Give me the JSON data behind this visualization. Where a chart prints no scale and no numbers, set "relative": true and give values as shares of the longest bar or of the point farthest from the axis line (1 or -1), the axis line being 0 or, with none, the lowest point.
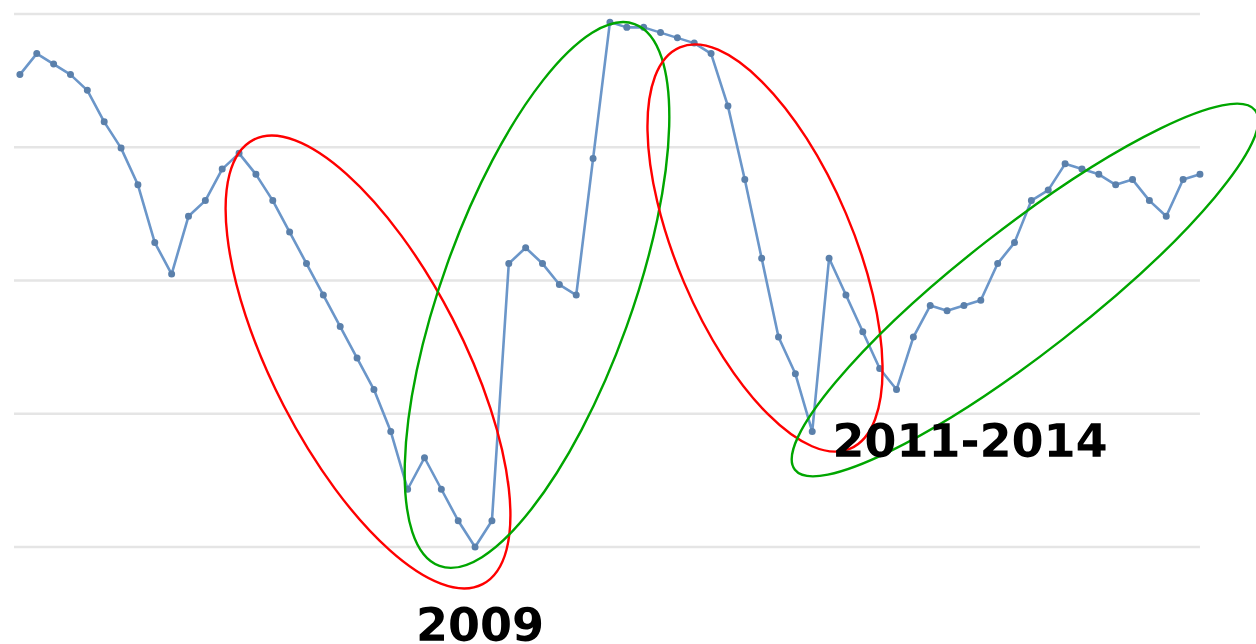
{
  "chart_data": {
    "type": "line",
    "relative": true,
    "color": "#6b96c9",
    "marker": "circle",
    "grid": "y",
    "categories": [
      null,
      null,
      null,
      null,
      null,
      null,
      null,
      null,
      null,
      null,
      null,
      null,
      null,
      null,
      null,
      null,
      null,
      null,
      null,
      null,
      null,
      null,
      null,
      null,
      null,
      null,
      null,
      null,
      null,
      null,
      null,
      null,
      null,
      null,
      null,
      null,
      null,
      null,
      null,
      null,
      null,
      null,
      null,
      null,
      null,
      null,
      null,
      null,
      null,
      null,
      null,
      null,
      null,
      null,
      null,
      null,
      null,
      null,
      null,
      null,
      null,
      null,
      null,
      null,
      null,
      null,
      null,
      null,
      null,
      null,
      null
    ],
    "values": [
      0.9,
      0.94,
      0.92,
      0.9,
      0.87,
      0.81,
      0.76,
      0.69,
      0.58,
      0.52,
      0.63,
      0.66,
      0.72,
      0.75,
      0.71,
      0.66,
      0.6,
      0.54,
      0.48,
      0.42,
      0.36,
      0.3,
      0.22,
      0.11,
      0.17,
      0.11,
      0.05,
      0,
      0.05,
      0.54,
      0.57,
      0.54,
      0.5,
      0.48,
      0.74,
      1,
      0.99,
      0.99,
      0.98,
      0.97,
      0.96,
      0.94,
      0.84,
      0.7,
      0.55,
      0.4,
      0.33,
      0.22,
      0.55,
      0.48,
      0.41,
      0.34,
      0.3,
      0.4,
      0.46,
      0.45,
      0.46,
      0.47,
      0.54,
      0.58,
      0.66,
      0.68,
      0.73,
      0.72,
      0.71,
      0.69,
      0.7,
      0.66,
      0.63,
      0.7,
      0.71
    ],
    "annotations": [
      "2009",
      "2011-2014"
    ]
  }
}
